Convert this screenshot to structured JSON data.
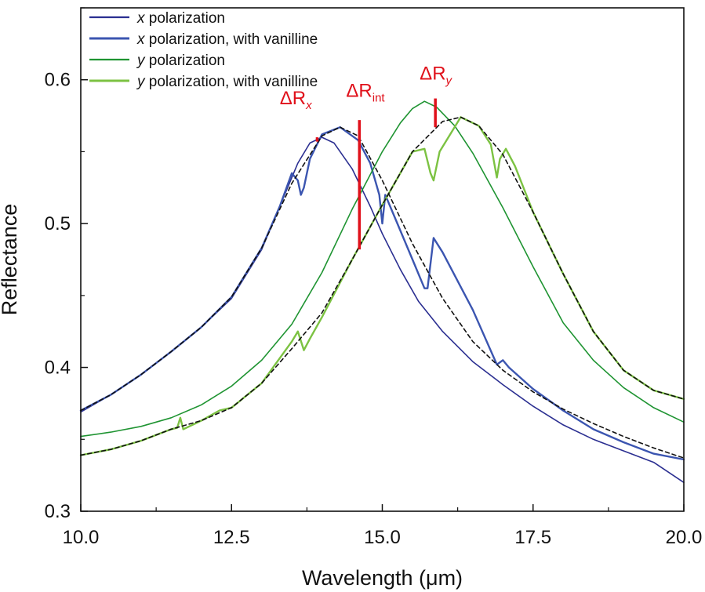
{
  "chart_data": {
    "type": "line",
    "xlabel": "Wavelength (μm)",
    "ylabel": "Reflectance",
    "xlim": [
      10.0,
      20.0
    ],
    "ylim": [
      0.3,
      0.65
    ],
    "xticks": [
      10.0,
      12.5,
      15.0,
      17.5,
      20.0
    ],
    "xtick_labels": [
      "10.0",
      "12.5",
      "15.0",
      "17.5",
      "20.0"
    ],
    "yticks": [
      0.3,
      0.4,
      0.5,
      0.6
    ],
    "ytick_labels": [
      "0.3",
      "0.4",
      "0.5",
      "0.6"
    ],
    "grid": false,
    "legend_position": "top-left",
    "colors": {
      "x_pol": "#2b2f91",
      "x_pol_vanilline": "#3b55b0",
      "y_pol": "#1f9432",
      "y_pol_vanilline": "#7cc242",
      "fit": "#111111",
      "annotation": "#e0101a"
    },
    "series": [
      {
        "name": "x polarization",
        "italic_prefix": "x",
        "suffix": " polarization",
        "color": "#2b2f91",
        "width": 1.6,
        "x": [
          10.0,
          10.5,
          11.0,
          11.5,
          12.0,
          12.5,
          13.0,
          13.3,
          13.6,
          13.8,
          14.0,
          14.2,
          14.5,
          14.8,
          15.0,
          15.3,
          15.6,
          16.0,
          16.5,
          17.0,
          17.5,
          18.0,
          18.5,
          19.0,
          19.5,
          20.0
        ],
        "y": [
          0.369,
          0.381,
          0.395,
          0.411,
          0.428,
          0.448,
          0.482,
          0.512,
          0.542,
          0.556,
          0.56,
          0.556,
          0.538,
          0.512,
          0.493,
          0.468,
          0.446,
          0.425,
          0.404,
          0.388,
          0.373,
          0.36,
          0.35,
          0.342,
          0.334,
          0.32
        ]
      },
      {
        "name": "x polarization, with vanilline",
        "italic_prefix": "x",
        "suffix": " polarization, with vanilline",
        "color": "#3b55b0",
        "width": 2.4,
        "x": [
          10.0,
          10.5,
          11.0,
          11.5,
          12.0,
          12.5,
          13.0,
          13.3,
          13.5,
          13.6,
          13.65,
          13.7,
          13.8,
          14.0,
          14.3,
          14.6,
          14.8,
          14.95,
          15.0,
          15.05,
          15.2,
          15.5,
          15.7,
          15.75,
          15.85,
          16.0,
          16.5,
          16.9,
          17.0,
          17.1,
          17.5,
          18.0,
          18.5,
          19.0,
          19.5,
          20.0
        ],
        "y": [
          0.37,
          0.381,
          0.395,
          0.411,
          0.428,
          0.449,
          0.483,
          0.512,
          0.535,
          0.53,
          0.52,
          0.525,
          0.545,
          0.562,
          0.567,
          0.558,
          0.542,
          0.52,
          0.5,
          0.52,
          0.505,
          0.475,
          0.455,
          0.455,
          0.49,
          0.48,
          0.44,
          0.402,
          0.405,
          0.4,
          0.385,
          0.37,
          0.357,
          0.348,
          0.34,
          0.336
        ]
      },
      {
        "name": "y polarization",
        "italic_prefix": "y",
        "suffix": " polarization",
        "color": "#1f9432",
        "width": 1.6,
        "x": [
          10.0,
          10.5,
          11.0,
          11.5,
          12.0,
          12.5,
          13.0,
          13.5,
          14.0,
          14.5,
          15.0,
          15.3,
          15.5,
          15.7,
          15.9,
          16.2,
          16.5,
          17.0,
          17.5,
          18.0,
          18.5,
          19.0,
          19.5,
          20.0
        ],
        "y": [
          0.352,
          0.355,
          0.359,
          0.365,
          0.374,
          0.387,
          0.405,
          0.43,
          0.466,
          0.51,
          0.55,
          0.57,
          0.58,
          0.585,
          0.581,
          0.568,
          0.549,
          0.511,
          0.47,
          0.431,
          0.405,
          0.386,
          0.372,
          0.362
        ]
      },
      {
        "name": "y polarization, with vanilline",
        "italic_prefix": "y",
        "suffix": " polarization, with vanilline",
        "color": "#7cc242",
        "width": 2.4,
        "x": [
          10.0,
          10.5,
          11.0,
          11.5,
          11.6,
          11.65,
          11.7,
          12.0,
          12.3,
          12.5,
          13.0,
          13.5,
          13.6,
          13.7,
          13.8,
          14.0,
          14.5,
          15.0,
          15.5,
          15.7,
          15.8,
          15.85,
          15.95,
          16.3,
          16.6,
          16.8,
          16.9,
          16.95,
          17.05,
          17.2,
          17.5,
          18.0,
          18.5,
          19.0,
          19.5,
          20.0
        ],
        "y": [
          0.339,
          0.343,
          0.349,
          0.357,
          0.358,
          0.365,
          0.357,
          0.363,
          0.37,
          0.372,
          0.389,
          0.418,
          0.425,
          0.412,
          0.42,
          0.435,
          0.475,
          0.513,
          0.55,
          0.552,
          0.535,
          0.53,
          0.55,
          0.574,
          0.568,
          0.555,
          0.532,
          0.545,
          0.552,
          0.54,
          0.508,
          0.465,
          0.425,
          0.398,
          0.384,
          0.378
        ]
      },
      {
        "name": "Lorentzian fit (x)",
        "legend": false,
        "dashed": true,
        "color": "#111111",
        "width": 1.6,
        "x": [
          10.0,
          10.5,
          11.0,
          11.5,
          12.0,
          12.5,
          13.0,
          13.5,
          14.0,
          14.3,
          14.6,
          15.0,
          15.5,
          16.0,
          16.5,
          17.0,
          17.5,
          18.0,
          18.5,
          19.0,
          19.5,
          20.0
        ],
        "y": [
          0.37,
          0.381,
          0.395,
          0.411,
          0.428,
          0.449,
          0.483,
          0.528,
          0.561,
          0.567,
          0.561,
          0.53,
          0.486,
          0.448,
          0.418,
          0.398,
          0.383,
          0.371,
          0.361,
          0.352,
          0.344,
          0.337
        ]
      },
      {
        "name": "Lorentzian fit (y)",
        "legend": false,
        "dashed": true,
        "color": "#111111",
        "width": 1.6,
        "x": [
          10.0,
          10.5,
          11.0,
          11.5,
          12.0,
          12.5,
          13.0,
          13.5,
          14.0,
          14.5,
          15.0,
          15.5,
          16.0,
          16.3,
          16.6,
          17.0,
          17.5,
          18.0,
          18.5,
          19.0,
          19.5,
          20.0
        ],
        "y": [
          0.339,
          0.343,
          0.349,
          0.357,
          0.363,
          0.372,
          0.389,
          0.413,
          0.438,
          0.475,
          0.513,
          0.55,
          0.571,
          0.574,
          0.568,
          0.548,
          0.508,
          0.465,
          0.425,
          0.398,
          0.384,
          0.378
        ]
      }
    ],
    "annotations": [
      {
        "label": "ΔR",
        "sub": "x",
        "sub_italic": true,
        "text_x": 13.3,
        "text_y": 0.583,
        "bar_x": 13.92,
        "bar_y0": 0.56,
        "bar_y1": 0.557
      },
      {
        "label": "ΔR",
        "sub": "int",
        "sub_italic": false,
        "text_x": 14.4,
        "text_y": 0.588,
        "bar_x": 14.62,
        "bar_y0": 0.572,
        "bar_y1": 0.482
      },
      {
        "label": "ΔR",
        "sub": "y",
        "sub_italic": true,
        "text_x": 15.62,
        "text_y": 0.6,
        "bar_x": 15.88,
        "bar_y0": 0.587,
        "bar_y1": 0.567
      }
    ]
  }
}
